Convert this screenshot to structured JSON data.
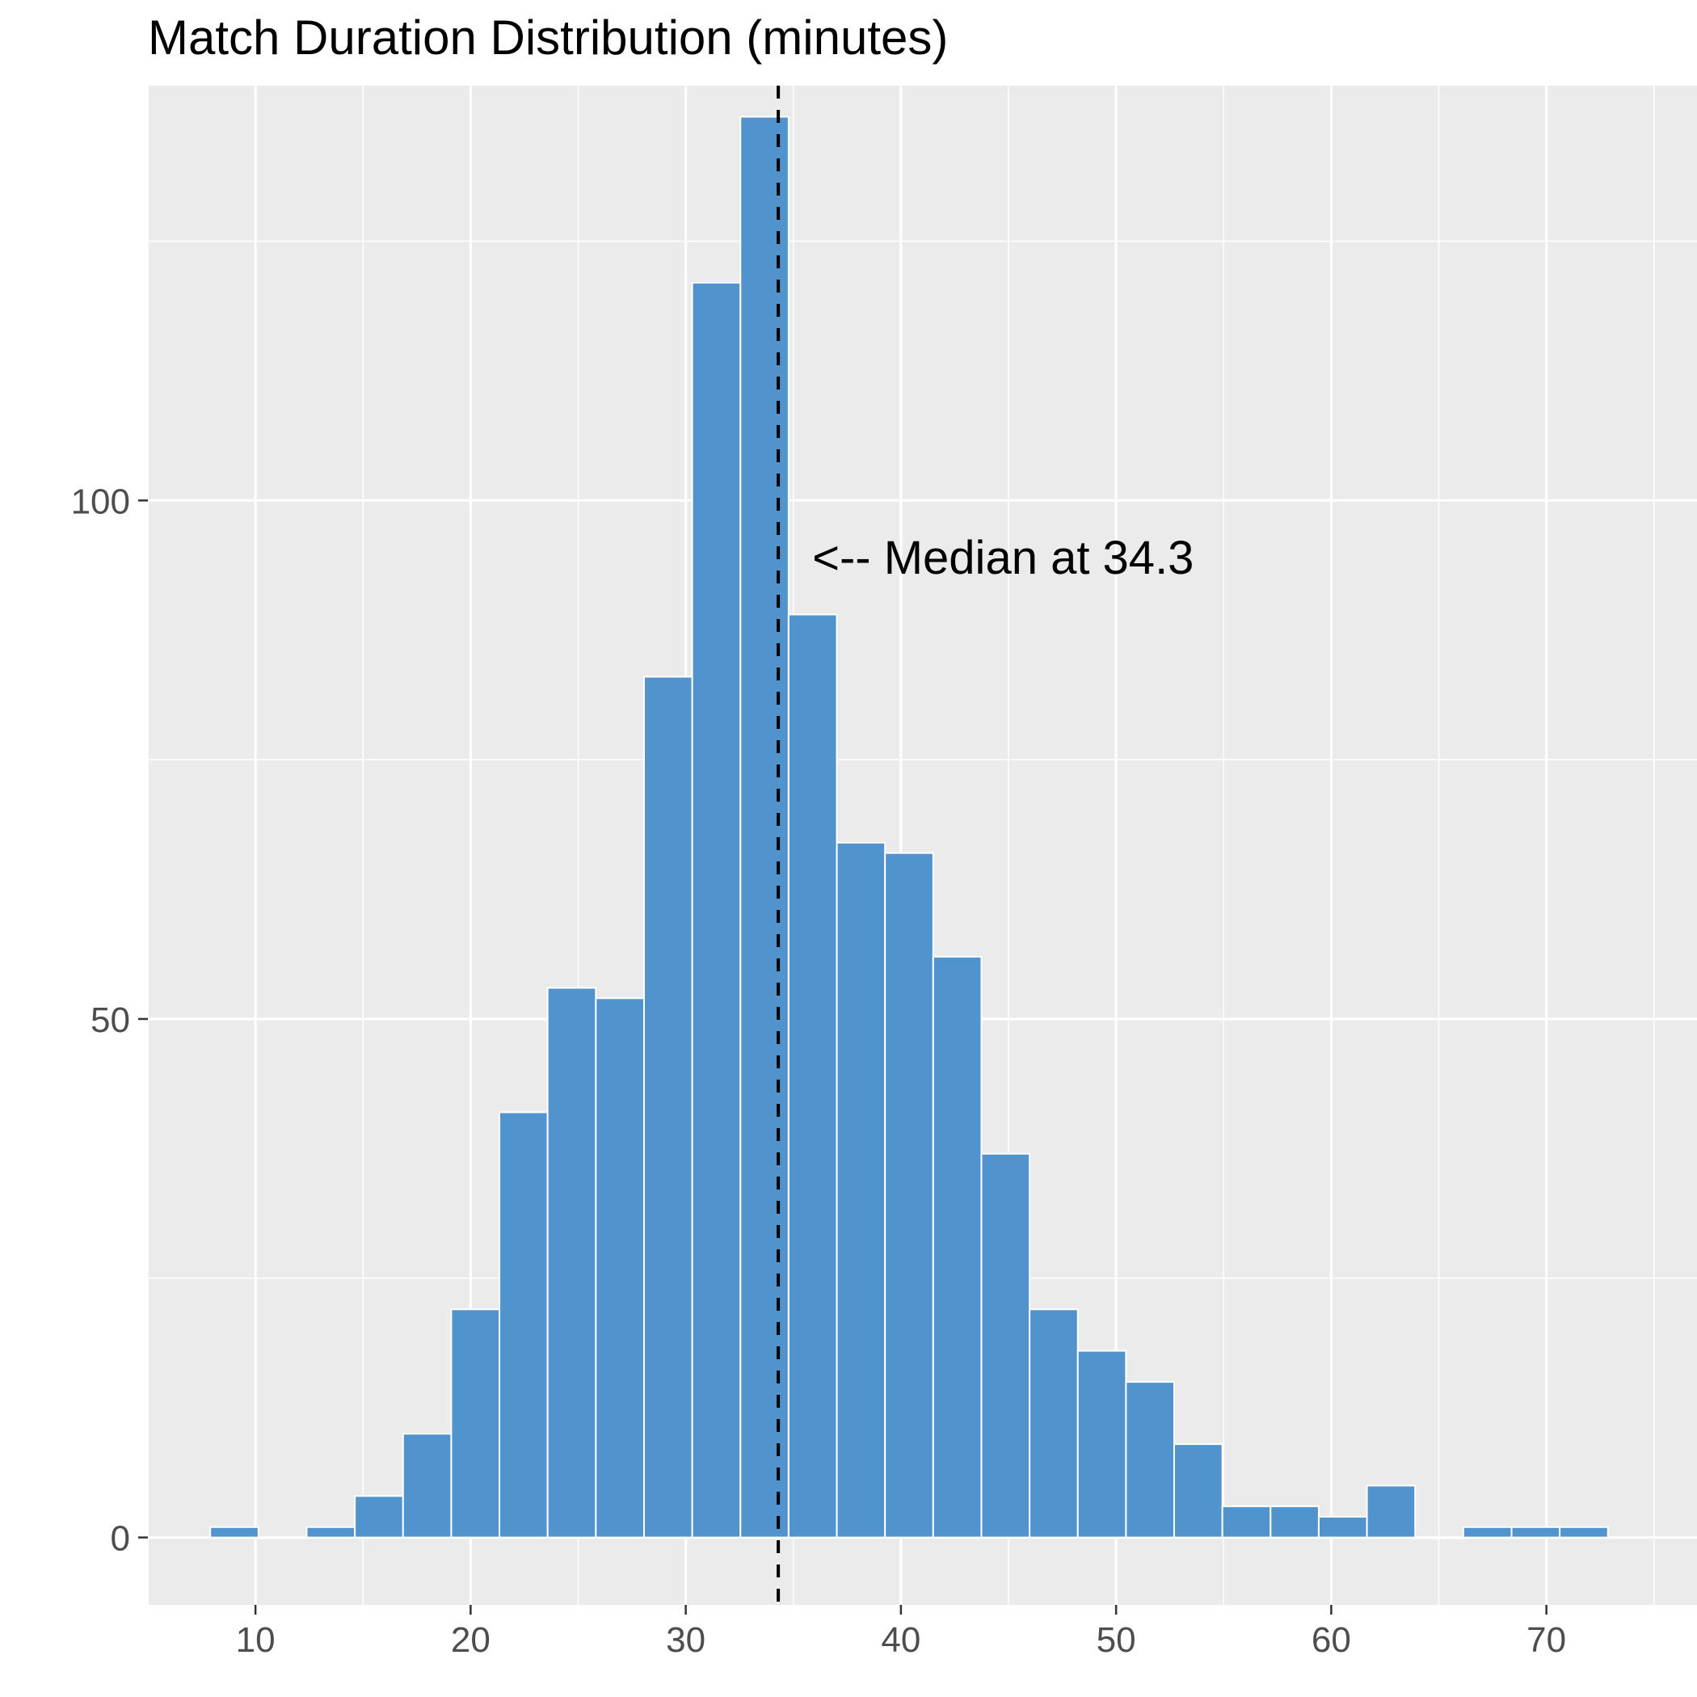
{
  "chart_data": {
    "type": "bar",
    "title": "Match Duration Distribution (minutes)",
    "xlabel": "",
    "ylabel": "",
    "x_ticks": [
      10,
      20,
      30,
      40,
      50,
      60,
      70
    ],
    "y_ticks": [
      0,
      50,
      100
    ],
    "xlim": [
      5,
      77
    ],
    "ylim": [
      -6.5,
      140
    ],
    "grid": true,
    "bin_width": 2.24,
    "bin_start": 7.9,
    "values": [
      1,
      0,
      1,
      4,
      10,
      22,
      41,
      53,
      52,
      83,
      121,
      137,
      89,
      67,
      66,
      56,
      37,
      22,
      18,
      15,
      9,
      3,
      3,
      2,
      5,
      0,
      1,
      1,
      1
    ],
    "bar_color": "#5093cd",
    "median_line": {
      "value": 34.3,
      "label": "<-- Median at 34.3",
      "color": "#000000"
    }
  }
}
